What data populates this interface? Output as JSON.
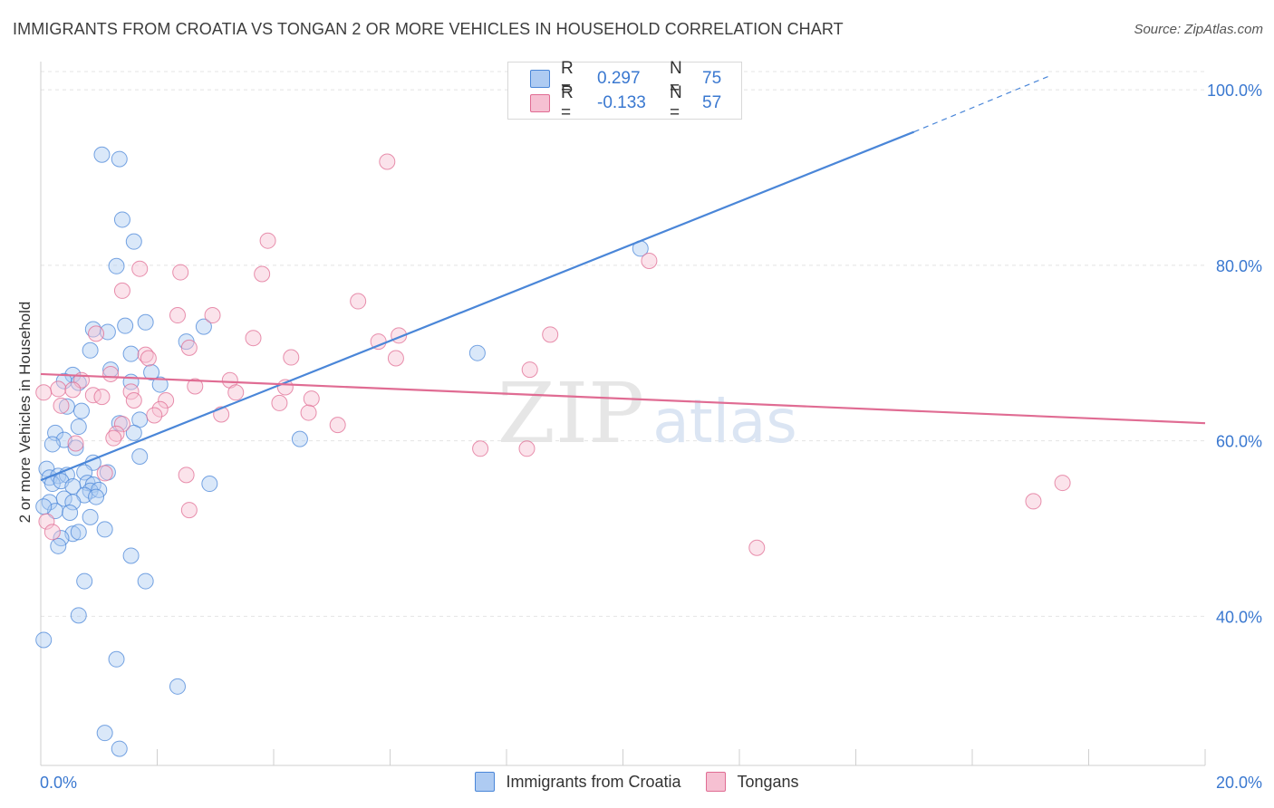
{
  "title": "IMMIGRANTS FROM CROATIA VS TONGAN 2 OR MORE VEHICLES IN HOUSEHOLD CORRELATION CHART",
  "source": "Source: ZipAtlas.com",
  "watermark": {
    "zip": "ZIP",
    "atlas": "atlas"
  },
  "legend": {
    "r_label": "R =",
    "n_label": "N =",
    "rows": [
      {
        "name": "Immigrants from Croatia",
        "r": "0.297",
        "n": "75",
        "color": "#4a86d8",
        "fill": "#aecbf2"
      },
      {
        "name": "Tongans",
        "r": "-0.133",
        "n": "57",
        "color": "#e06c93",
        "fill": "#f6c0d2"
      }
    ]
  },
  "chart_data": {
    "type": "scatter",
    "title": "IMMIGRANTS FROM CROATIA VS TONGAN 2 OR MORE VEHICLES IN HOUSEHOLD CORRELATION CHART",
    "xlabel": "",
    "ylabel": "2 or more Vehicles in Household",
    "xlim": [
      0,
      20
    ],
    "ylim": [
      23,
      103
    ],
    "x_tick_labels": [
      "0.0%",
      "20.0%"
    ],
    "y_ticks": [
      40,
      60,
      80,
      100
    ],
    "y_tick_labels": [
      "40.0%",
      "60.0%",
      "80.0%",
      "100.0%"
    ],
    "grid": true,
    "series": [
      {
        "name": "Immigrants from Croatia",
        "color": "#4a86d8",
        "trend": {
          "x0": 0,
          "y0": 55.5,
          "x1": 15,
          "y1": 95.2,
          "dash_to_x": 17.3,
          "dash_to_y": 101.5
        },
        "points": [
          [
            1.05,
            92.6
          ],
          [
            1.35,
            92.1
          ],
          [
            1.4,
            85.2
          ],
          [
            1.6,
            82.7
          ],
          [
            1.3,
            79.9
          ],
          [
            10.3,
            81.9
          ],
          [
            0.9,
            72.7
          ],
          [
            1.15,
            72.4
          ],
          [
            1.45,
            73.1
          ],
          [
            1.8,
            73.5
          ],
          [
            2.5,
            71.3
          ],
          [
            2.8,
            73.0
          ],
          [
            0.85,
            70.3
          ],
          [
            1.55,
            69.9
          ],
          [
            7.5,
            70.0
          ],
          [
            1.2,
            68.1
          ],
          [
            1.9,
            67.8
          ],
          [
            0.55,
            67.5
          ],
          [
            0.4,
            66.8
          ],
          [
            0.65,
            66.6
          ],
          [
            1.55,
            66.7
          ],
          [
            2.05,
            66.4
          ],
          [
            0.45,
            63.9
          ],
          [
            0.7,
            63.4
          ],
          [
            1.35,
            62.0
          ],
          [
            1.7,
            62.4
          ],
          [
            0.65,
            61.6
          ],
          [
            1.6,
            60.9
          ],
          [
            0.25,
            60.9
          ],
          [
            0.4,
            60.1
          ],
          [
            0.2,
            59.6
          ],
          [
            0.6,
            59.2
          ],
          [
            4.45,
            60.2
          ],
          [
            1.7,
            58.2
          ],
          [
            0.9,
            57.5
          ],
          [
            0.1,
            56.8
          ],
          [
            0.15,
            55.8
          ],
          [
            0.3,
            56.0
          ],
          [
            0.45,
            56.1
          ],
          [
            0.75,
            56.4
          ],
          [
            1.15,
            56.4
          ],
          [
            0.8,
            55.2
          ],
          [
            0.9,
            55.0
          ],
          [
            0.2,
            55.1
          ],
          [
            0.35,
            55.4
          ],
          [
            0.55,
            54.8
          ],
          [
            0.85,
            54.3
          ],
          [
            1.0,
            54.4
          ],
          [
            2.9,
            55.1
          ],
          [
            0.75,
            53.8
          ],
          [
            0.4,
            53.4
          ],
          [
            0.15,
            53.0
          ],
          [
            0.55,
            53.0
          ],
          [
            0.95,
            53.6
          ],
          [
            0.25,
            52.0
          ],
          [
            0.5,
            51.8
          ],
          [
            0.05,
            52.5
          ],
          [
            0.85,
            51.3
          ],
          [
            1.1,
            49.9
          ],
          [
            0.55,
            49.4
          ],
          [
            0.35,
            48.9
          ],
          [
            0.65,
            49.6
          ],
          [
            0.3,
            48.0
          ],
          [
            1.55,
            46.9
          ],
          [
            0.75,
            44.0
          ],
          [
            1.8,
            44.0
          ],
          [
            0.65,
            40.1
          ],
          [
            0.05,
            37.3
          ],
          [
            1.3,
            35.1
          ],
          [
            2.35,
            32.0
          ],
          [
            1.1,
            26.7
          ],
          [
            1.35,
            24.9
          ]
        ]
      },
      {
        "name": "Tongans",
        "color": "#e06c93",
        "trend": {
          "x0": 0,
          "y0": 67.6,
          "x1": 20,
          "y1": 62.0
        },
        "points": [
          [
            5.95,
            91.8
          ],
          [
            3.9,
            82.8
          ],
          [
            1.7,
            79.6
          ],
          [
            2.4,
            79.2
          ],
          [
            3.8,
            79.0
          ],
          [
            10.45,
            80.5
          ],
          [
            1.4,
            77.1
          ],
          [
            5.45,
            75.9
          ],
          [
            2.35,
            74.3
          ],
          [
            2.95,
            74.3
          ],
          [
            0.95,
            72.2
          ],
          [
            3.65,
            71.7
          ],
          [
            6.15,
            72.0
          ],
          [
            5.8,
            71.3
          ],
          [
            8.75,
            72.1
          ],
          [
            2.55,
            70.6
          ],
          [
            1.8,
            69.8
          ],
          [
            1.85,
            69.4
          ],
          [
            4.3,
            69.5
          ],
          [
            6.1,
            69.4
          ],
          [
            8.4,
            68.1
          ],
          [
            1.2,
            67.6
          ],
          [
            3.25,
            66.9
          ],
          [
            0.7,
            66.9
          ],
          [
            2.65,
            66.2
          ],
          [
            4.2,
            66.1
          ],
          [
            0.3,
            65.9
          ],
          [
            0.55,
            65.8
          ],
          [
            0.9,
            65.2
          ],
          [
            1.55,
            65.6
          ],
          [
            3.35,
            65.5
          ],
          [
            0.05,
            65.5
          ],
          [
            1.05,
            65.0
          ],
          [
            1.6,
            64.6
          ],
          [
            2.15,
            64.6
          ],
          [
            4.65,
            64.8
          ],
          [
            4.1,
            64.3
          ],
          [
            0.35,
            64.0
          ],
          [
            2.05,
            63.6
          ],
          [
            3.1,
            63.0
          ],
          [
            4.6,
            63.2
          ],
          [
            1.95,
            62.9
          ],
          [
            1.4,
            61.9
          ],
          [
            5.1,
            61.8
          ],
          [
            1.3,
            60.8
          ],
          [
            0.6,
            59.7
          ],
          [
            7.55,
            59.1
          ],
          [
            8.35,
            59.1
          ],
          [
            1.1,
            56.3
          ],
          [
            2.5,
            56.1
          ],
          [
            17.55,
            55.2
          ],
          [
            17.05,
            53.1
          ],
          [
            2.55,
            52.1
          ],
          [
            0.1,
            50.8
          ],
          [
            12.3,
            47.8
          ],
          [
            0.2,
            49.6
          ],
          [
            1.25,
            60.3
          ]
        ]
      }
    ]
  }
}
